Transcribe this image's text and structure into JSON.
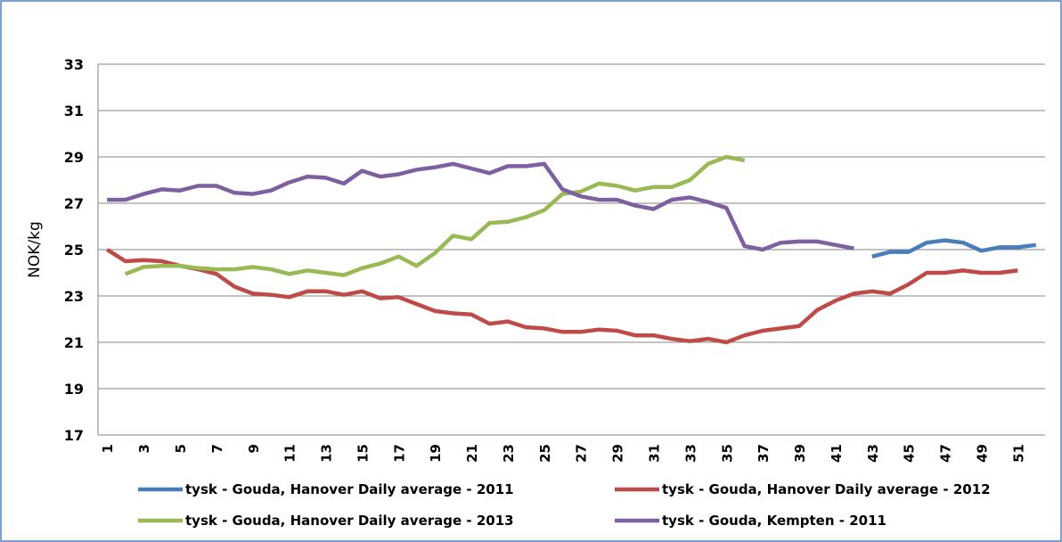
{
  "chart_data": {
    "type": "line",
    "y_label": "NOK/kg",
    "categories": [
      "1",
      null,
      "3",
      null,
      "5",
      null,
      "7",
      null,
      "9",
      null,
      "11",
      null,
      "13",
      null,
      "15",
      null,
      "17",
      null,
      "19",
      null,
      "21",
      null,
      "23",
      null,
      "25",
      null,
      "27",
      null,
      "29",
      null,
      "31",
      null,
      "33",
      null,
      "35",
      null,
      "37",
      null,
      "39",
      null,
      "41",
      null,
      "43",
      null,
      "45",
      null,
      "47",
      null,
      "49",
      null,
      "51",
      null
    ],
    "ylim": [
      17,
      33
    ],
    "yticks": [
      17,
      19,
      21,
      23,
      25,
      27,
      29,
      31,
      33
    ],
    "grid": true,
    "series": [
      {
        "name": "tysk - Gouda, Hanover Daily average - 2011",
        "color": "#4a7ebb",
        "values": [
          null,
          null,
          null,
          null,
          null,
          null,
          null,
          null,
          null,
          null,
          null,
          null,
          null,
          null,
          null,
          null,
          null,
          null,
          null,
          null,
          null,
          null,
          null,
          null,
          null,
          null,
          null,
          null,
          null,
          null,
          null,
          null,
          null,
          null,
          null,
          null,
          null,
          null,
          null,
          null,
          null,
          null,
          24.7,
          24.9,
          24.9,
          25.3,
          25.4,
          25.3,
          24.95,
          25.1,
          25.1,
          25.2
        ]
      },
      {
        "name": "tysk - Gouda, Hanover Daily average - 2012",
        "color": "#be4b48",
        "values": [
          25.0,
          24.5,
          24.55,
          24.5,
          24.3,
          24.15,
          23.95,
          23.4,
          23.1,
          23.05,
          22.95,
          23.2,
          23.2,
          23.05,
          23.2,
          22.9,
          22.95,
          22.65,
          22.35,
          22.25,
          22.2,
          21.8,
          21.9,
          21.65,
          21.6,
          21.45,
          21.45,
          21.55,
          21.5,
          21.3,
          21.3,
          21.15,
          21.05,
          21.15,
          21.0,
          21.3,
          21.5,
          21.6,
          21.7,
          22.4,
          22.8,
          23.1,
          23.2,
          23.1,
          23.5,
          24.0,
          24.0,
          24.1,
          24.0,
          24.0,
          24.1,
          null
        ]
      },
      {
        "name": "tysk - Gouda, Hanover Daily average - 2013",
        "color": "#98b954",
        "values": [
          null,
          23.95,
          24.25,
          24.3,
          24.3,
          24.2,
          24.15,
          24.15,
          24.25,
          24.15,
          23.95,
          24.1,
          24.0,
          23.9,
          24.2,
          24.4,
          24.7,
          24.3,
          24.85,
          25.6,
          25.45,
          26.15,
          26.2,
          26.4,
          26.7,
          27.4,
          27.5,
          27.85,
          27.75,
          27.55,
          27.7,
          27.7,
          28.0,
          28.7,
          29.0,
          28.85,
          null,
          null,
          null,
          null,
          null,
          null,
          null,
          null,
          null,
          null,
          null,
          null,
          null,
          null,
          null,
          null
        ]
      },
      {
        "name": "tysk - Gouda, Kempten - 2011",
        "color": "#7d60a0",
        "values": [
          27.15,
          27.15,
          27.4,
          27.6,
          27.55,
          27.75,
          27.75,
          27.45,
          27.4,
          27.55,
          27.9,
          28.15,
          28.1,
          27.85,
          28.4,
          28.15,
          28.25,
          28.45,
          28.55,
          28.7,
          28.5,
          28.3,
          28.6,
          28.6,
          28.7,
          27.6,
          27.3,
          27.15,
          27.15,
          26.9,
          26.75,
          27.15,
          27.25,
          27.05,
          26.8,
          25.15,
          25.0,
          25.3,
          25.35,
          25.35,
          25.2,
          25.05,
          null,
          null,
          null,
          null,
          null,
          null,
          null,
          null,
          null,
          null
        ]
      }
    ]
  }
}
